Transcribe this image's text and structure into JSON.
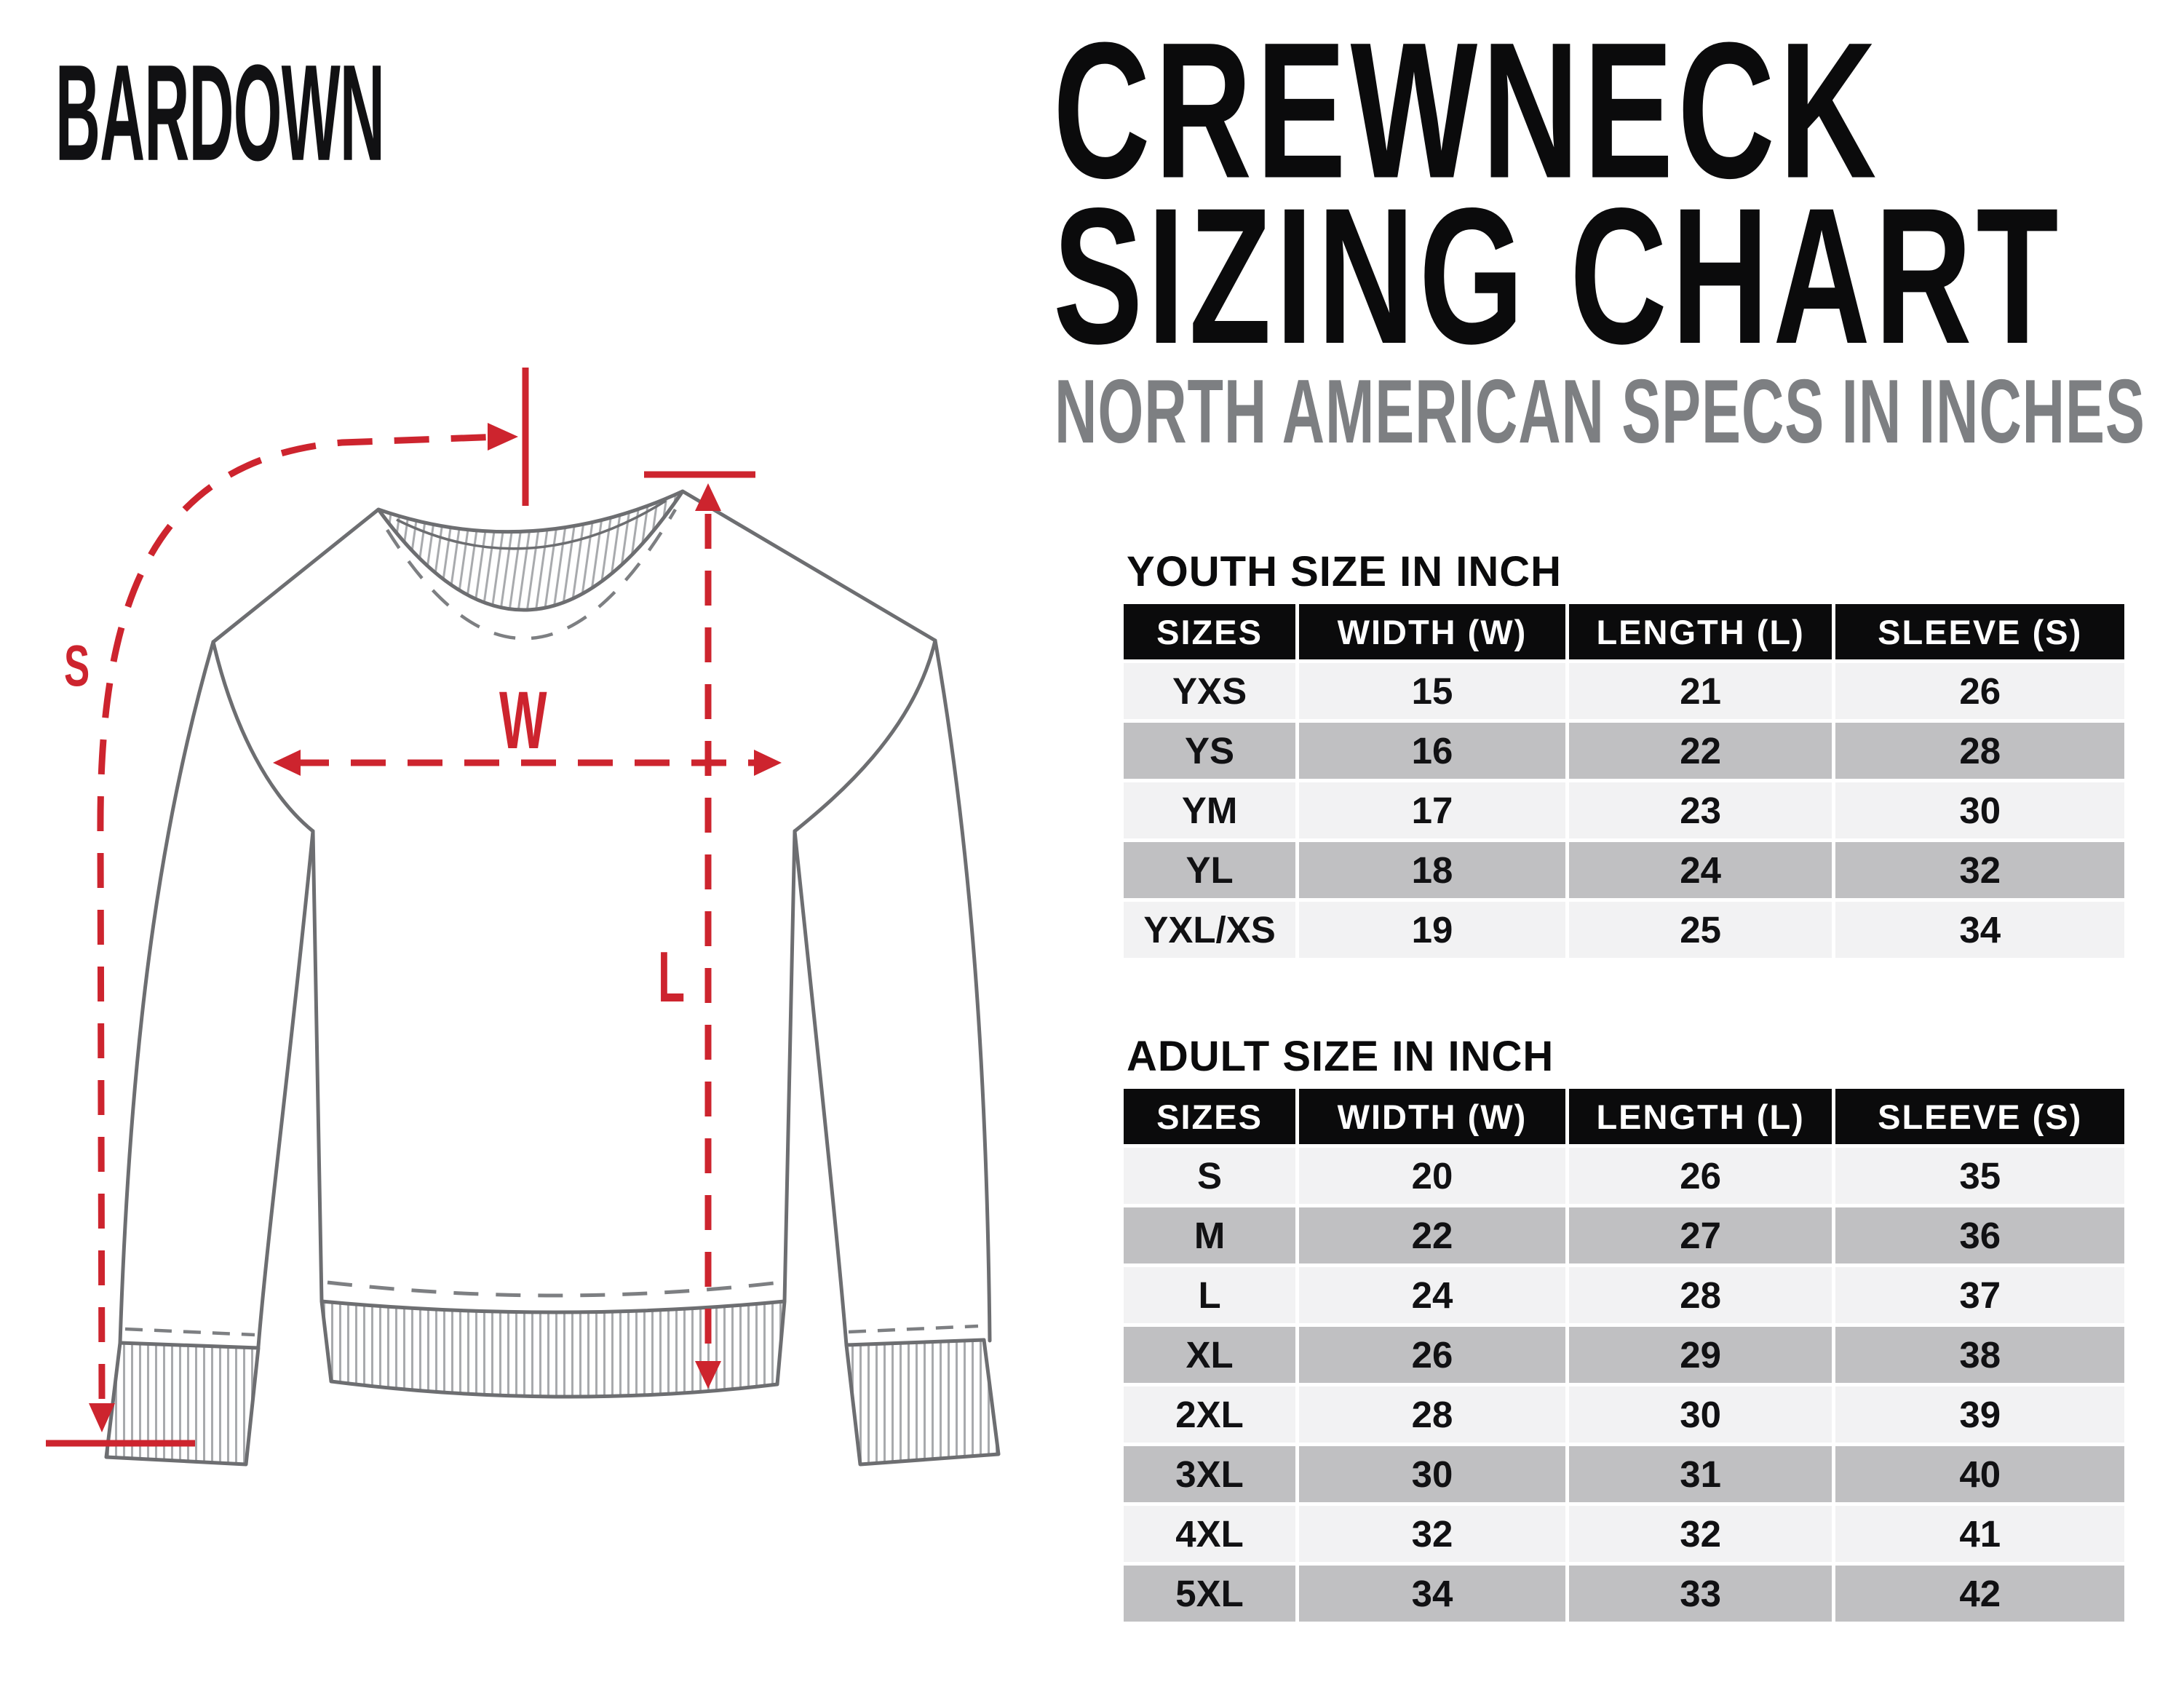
{
  "logo": {
    "text": "BARDOWN"
  },
  "header": {
    "title_line1": "CREWNECK",
    "title_line2": "SIZING CHART",
    "subtitle": "NORTH AMERICAN SPECS IN INCHES"
  },
  "diagram": {
    "labels": {
      "sleeve": "S",
      "width": "W",
      "length": "L"
    }
  },
  "colors": {
    "accent_red": "#cd242e",
    "outline_gray": "#6d6e71",
    "rib_gray": "#a8aaad",
    "seam_gray": "#7d7f82",
    "subtitle_gray": "#7d7f82",
    "table_header_bg": "#0b0b0c",
    "table_row_light": "#f2f2f3",
    "table_row_dark": "#c0c0c2"
  },
  "tables": {
    "youth": {
      "label": "YOUTH SIZE IN INCH",
      "columns": [
        "SIZES",
        "WIDTH (W)",
        "LENGTH (L)",
        "SLEEVE (S)"
      ],
      "rows": [
        [
          "YXS",
          "15",
          "21",
          "26"
        ],
        [
          "YS",
          "16",
          "22",
          "28"
        ],
        [
          "YM",
          "17",
          "23",
          "30"
        ],
        [
          "YL",
          "18",
          "24",
          "32"
        ],
        [
          "YXL/XS",
          "19",
          "25",
          "34"
        ]
      ]
    },
    "adult": {
      "label": "ADULT SIZE IN INCH",
      "columns": [
        "SIZES",
        "WIDTH (W)",
        "LENGTH (L)",
        "SLEEVE (S)"
      ],
      "rows": [
        [
          "S",
          "20",
          "26",
          "35"
        ],
        [
          "M",
          "22",
          "27",
          "36"
        ],
        [
          "L",
          "24",
          "28",
          "37"
        ],
        [
          "XL",
          "26",
          "29",
          "38"
        ],
        [
          "2XL",
          "28",
          "30",
          "39"
        ],
        [
          "3XL",
          "30",
          "31",
          "40"
        ],
        [
          "4XL",
          "32",
          "32",
          "41"
        ],
        [
          "5XL",
          "34",
          "33",
          "42"
        ]
      ]
    }
  }
}
